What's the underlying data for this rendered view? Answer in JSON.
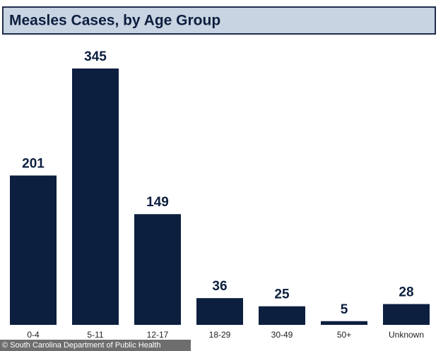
{
  "chart_data": {
    "type": "bar",
    "title": "Measles Cases, by Age Group",
    "categories": [
      "0-4",
      "5-11",
      "12-17",
      "18-29",
      "30-49",
      "50+",
      "Unknown"
    ],
    "values": [
      201,
      345,
      149,
      36,
      25,
      5,
      28
    ],
    "color": "#0d1f3f",
    "credit": "© South Carolina Department of Public Health"
  }
}
